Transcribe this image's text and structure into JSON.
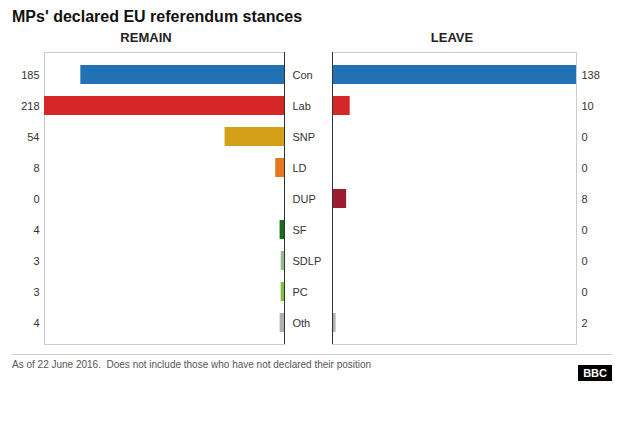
{
  "chart_data": {
    "type": "bar",
    "title": "MPs' declared EU referendum stances",
    "orientation": "horizontal",
    "categories": [
      "Con",
      "Lab",
      "SNP",
      "LD",
      "DUP",
      "SF",
      "SDLP",
      "PC",
      "Oth"
    ],
    "series": [
      {
        "name": "REMAIN",
        "values": [
          185,
          218,
          54,
          8,
          0,
          4,
          3,
          3,
          4
        ],
        "colors": [
          "#2171b5",
          "#d62728",
          "#d4a017",
          "#e87820",
          "#008080",
          "#1a6b1a",
          "#90c090",
          "#80c040",
          "#b0b0b0"
        ],
        "xlim": [
          218,
          0
        ]
      },
      {
        "name": "LEAVE",
        "values": [
          138,
          10,
          0,
          0,
          8,
          0,
          0,
          0,
          2
        ],
        "colors": [
          "#2171b5",
          "#d62728",
          "#d4a017",
          "#e87820",
          "#9b1b30",
          "#1a6b1a",
          "#90c090",
          "#80c040",
          "#b0b0b0"
        ],
        "xlim": [
          0,
          138
        ]
      }
    ],
    "data_labels": true,
    "tick_labels": "y",
    "annotations": [
      "As of 22 June 2016.  Does not include those who have not declared their position",
      "BBC"
    ]
  }
}
